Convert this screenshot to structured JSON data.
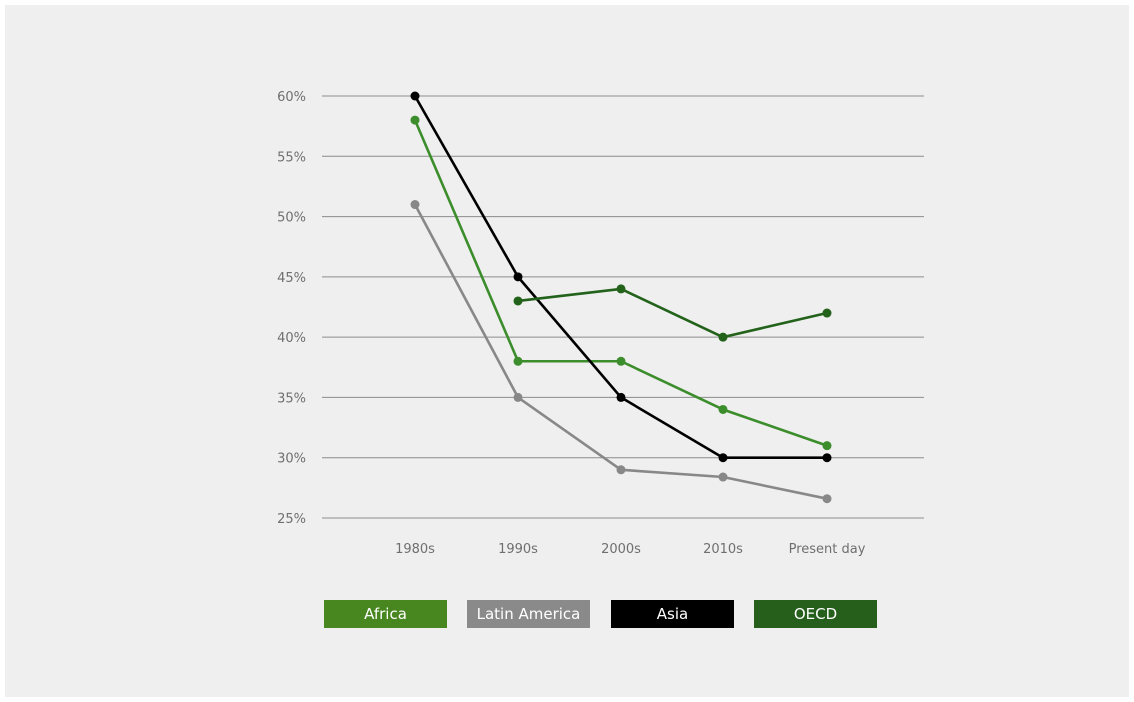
{
  "chart_data": {
    "type": "line",
    "categories": [
      "1980s",
      "1990s",
      "2000s",
      "2010s",
      "Present day"
    ],
    "y_ticks": [
      "25%",
      "30%",
      "35%",
      "40%",
      "45%",
      "50%",
      "55%",
      "60%"
    ],
    "ylim": [
      25,
      60
    ],
    "grid": true,
    "legend_placement": "bottom",
    "series": [
      {
        "name": "Africa",
        "color": "#3c8d2b",
        "values": [
          58,
          38,
          38,
          34,
          31
        ]
      },
      {
        "name": "Latin America",
        "color": "#888888",
        "values": [
          51,
          35,
          29,
          28.4,
          26.6
        ]
      },
      {
        "name": "Asia",
        "color": "#000000",
        "values": [
          60,
          45,
          35,
          30,
          30
        ]
      },
      {
        "name": "OECD",
        "color": "#22621a",
        "values": [
          null,
          43,
          44,
          40,
          42
        ]
      }
    ]
  },
  "legend": {
    "items": [
      {
        "label": "Africa",
        "color": "#48861f"
      },
      {
        "label": "Latin America",
        "color": "#8a8a8a"
      },
      {
        "label": "Asia",
        "color": "#000000"
      },
      {
        "label": "OECD",
        "color": "#265f1c"
      }
    ]
  }
}
